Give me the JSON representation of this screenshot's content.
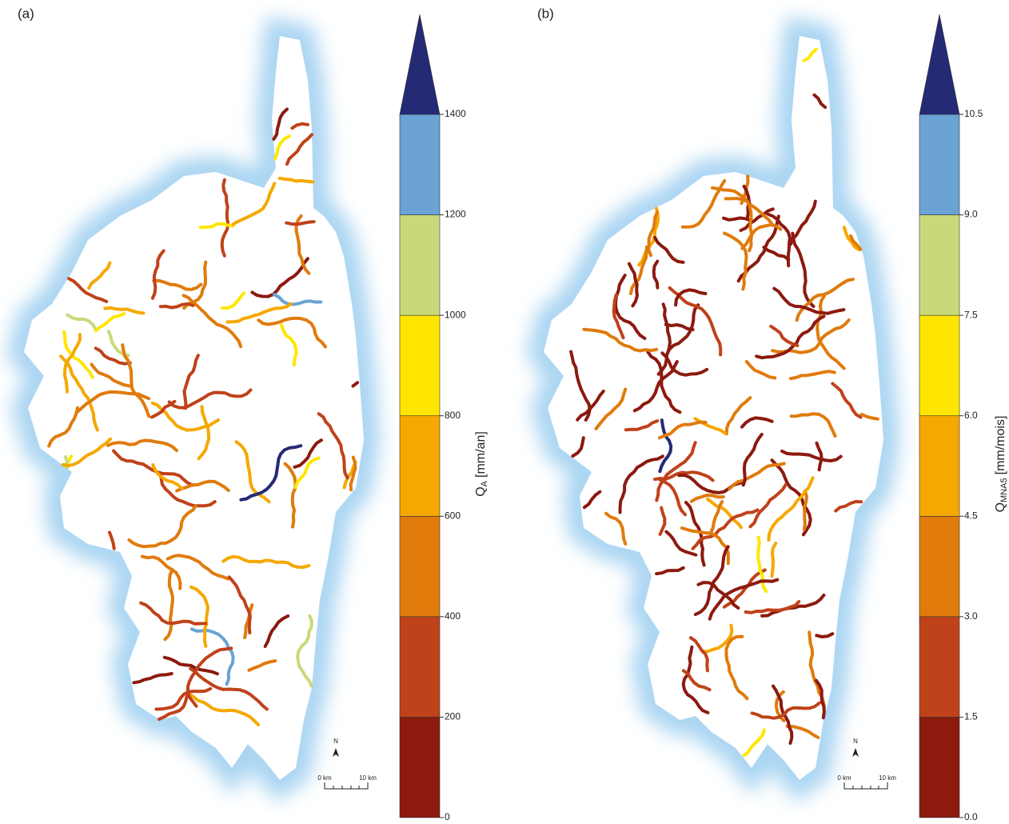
{
  "panels": [
    {
      "label": "(a)",
      "colorbar": {
        "title": {
          "symbol": "Q",
          "subscript": "A",
          "unit": "[mm/an]"
        },
        "ticks": [
          0,
          200,
          400,
          600,
          800,
          1000,
          1200,
          1400
        ],
        "colors": [
          "#8c1a0f",
          "#c0421a",
          "#e07b0c",
          "#f5a800",
          "#ffe600",
          "#c9d97a",
          "#6aa3d4",
          "#252a75"
        ]
      },
      "north": "N",
      "scale": {
        "start": "0 km",
        "end": "10 km"
      }
    },
    {
      "label": "(b)",
      "colorbar": {
        "title": {
          "symbol": "Q",
          "subscript": "MNA5",
          "unit": "[mm/mois]"
        },
        "ticks": [
          {
            "value": 0,
            "label": "0.0"
          },
          {
            "value": 1.5,
            "label": "1.5"
          },
          {
            "value": 3,
            "label": "3.0"
          },
          {
            "value": 4.5,
            "label": "4.5"
          },
          {
            "value": 6,
            "label": "6.0"
          },
          {
            "value": 7.5,
            "label": "7.5"
          },
          {
            "value": 9,
            "label": "9.0"
          },
          {
            "value": 10.5,
            "label": "10.5"
          }
        ],
        "colors": [
          "#8c1a0f",
          "#c0421a",
          "#e07b0c",
          "#f5a800",
          "#ffe600",
          "#c9d97a",
          "#6aa3d4",
          "#252a75"
        ]
      },
      "north": "N",
      "scale": {
        "start": "0 km",
        "end": "10 km"
      }
    }
  ]
}
